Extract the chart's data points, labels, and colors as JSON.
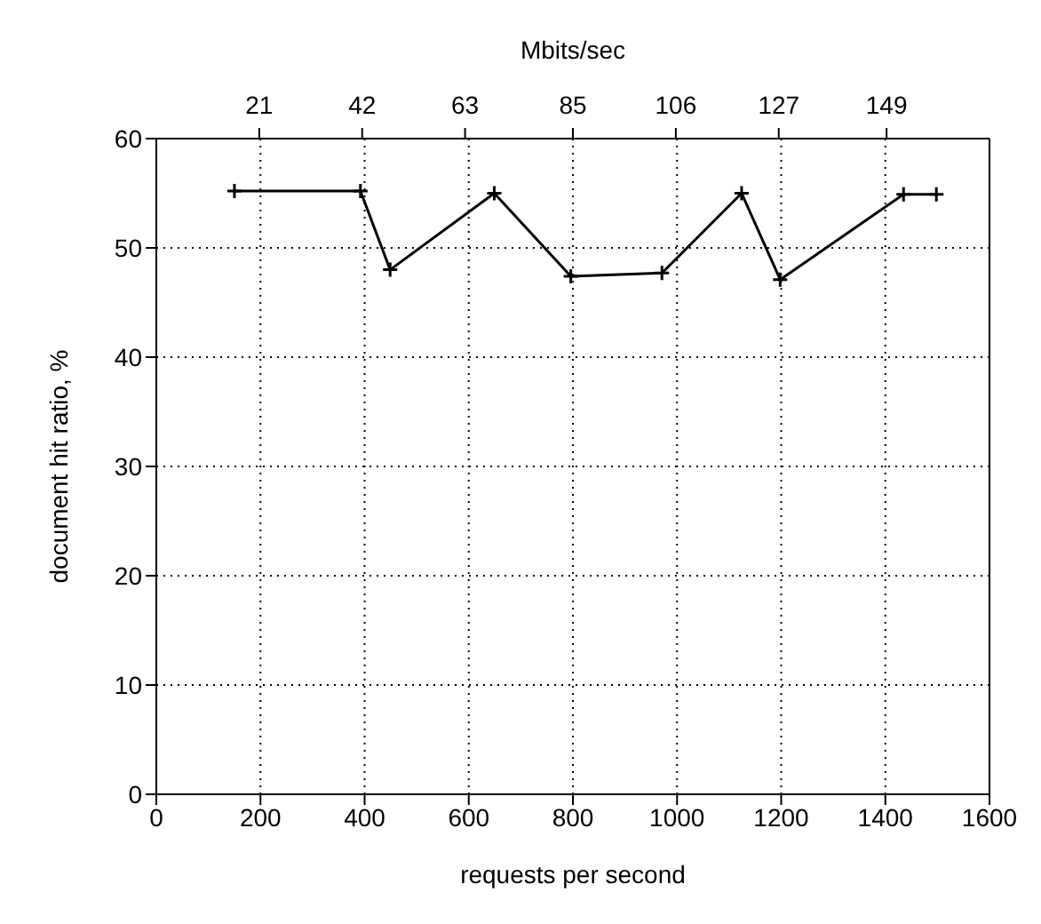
{
  "chart_data": {
    "type": "line",
    "xlabel": "requests per second",
    "ylabel": "document hit ratio, %",
    "x2label": "Mbits/sec",
    "x": [
      150,
      392,
      449,
      649,
      796,
      971,
      1124,
      1198,
      1435,
      1498
    ],
    "series": [
      {
        "color": "#000000",
        "values": [
          55.2,
          55.2,
          48.0,
          55.0,
          47.4,
          47.7,
          55.0,
          47.1,
          54.9,
          54.9
        ]
      }
    ],
    "xlim": [
      0,
      1600
    ],
    "xticks": [
      0,
      200,
      400,
      600,
      800,
      1000,
      1200,
      1400,
      1600
    ],
    "ylim": [
      0,
      60
    ],
    "yticks": [
      0,
      10,
      20,
      30,
      40,
      50,
      60
    ],
    "x2lim": [
      0,
      170
    ],
    "x2ticks": [
      21,
      42,
      63,
      85,
      106,
      127,
      149
    ],
    "grid": true,
    "marker": "cross",
    "line_style": "solid",
    "legend": false
  }
}
